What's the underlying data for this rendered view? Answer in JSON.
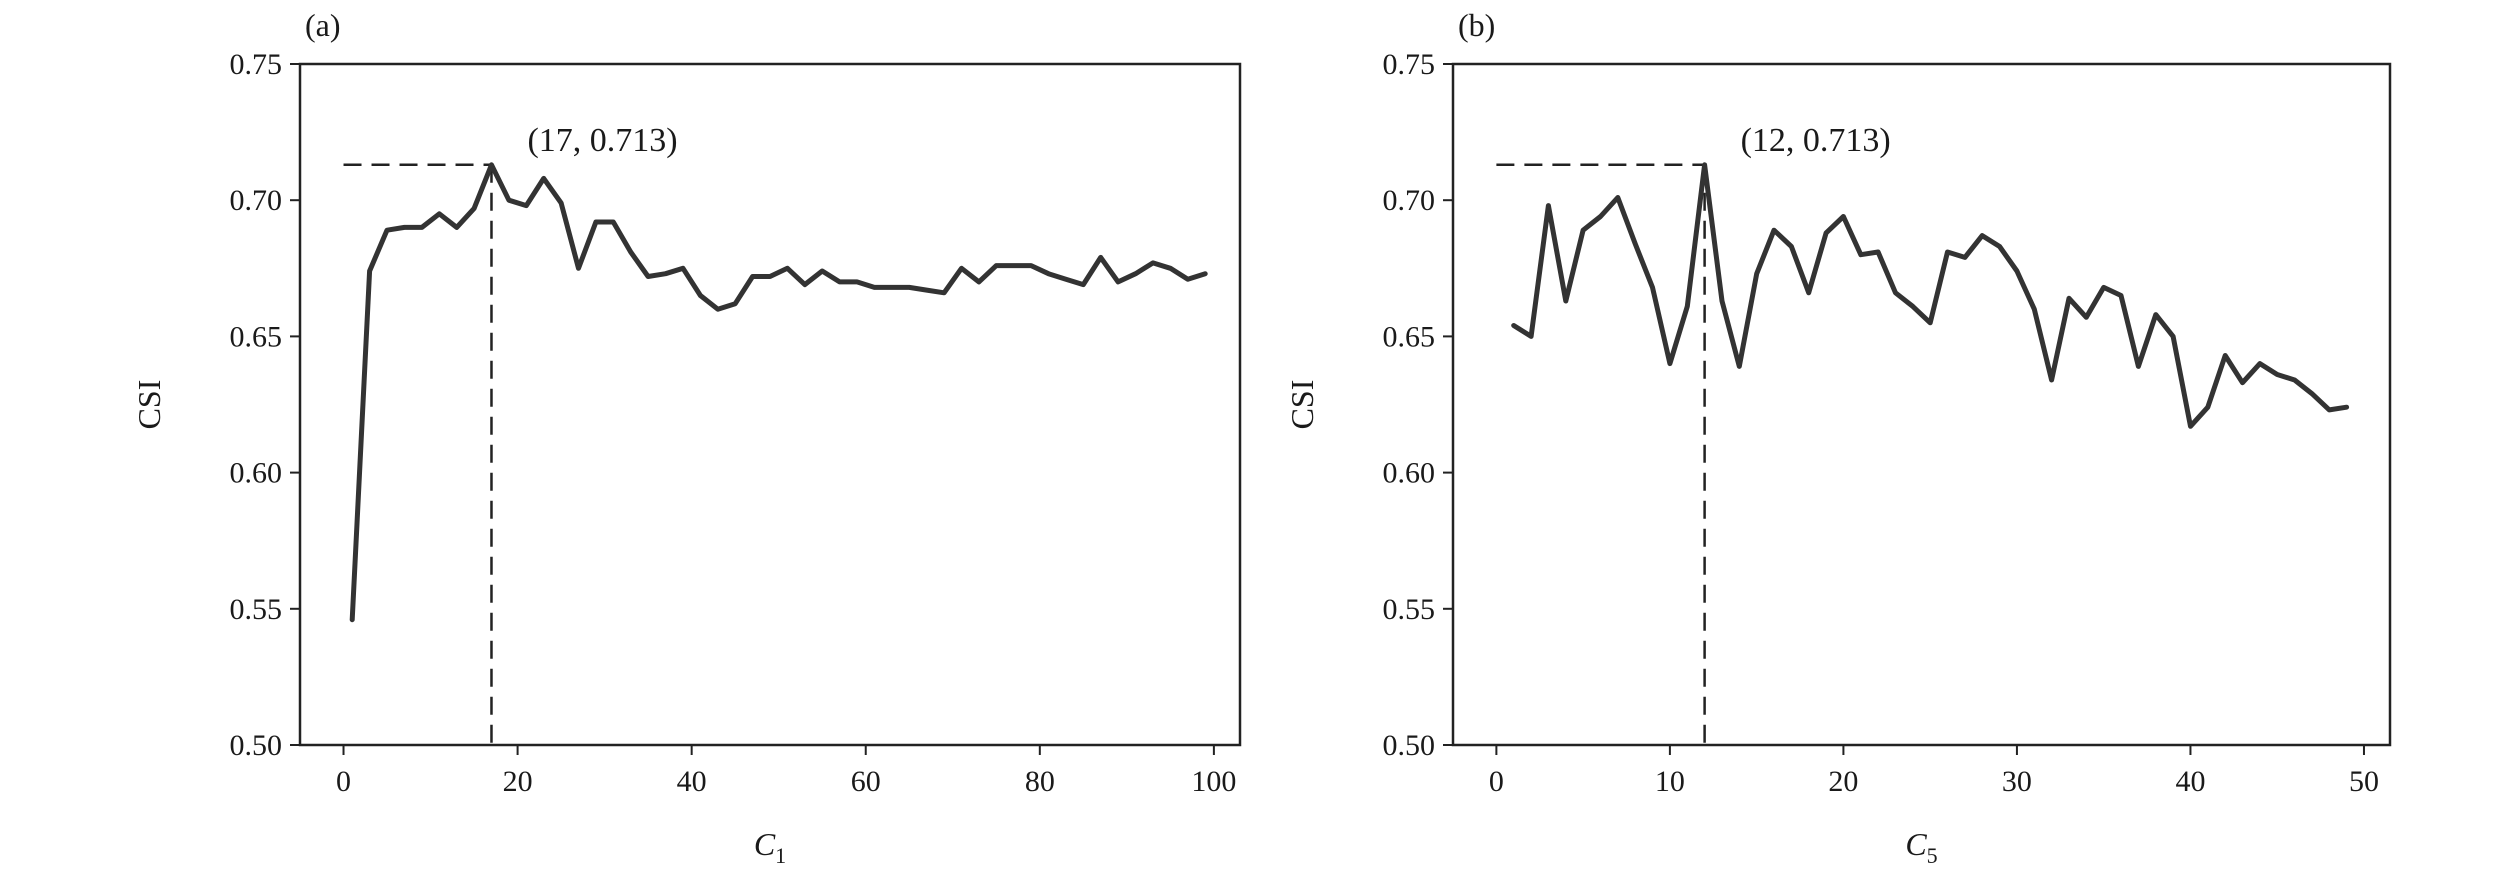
{
  "chart_data": [
    {
      "panel": "(a)",
      "type": "line",
      "ylabel": "CSI",
      "xlabel_main": "C",
      "xlabel_sub": "1",
      "xlim": [
        -5,
        103
      ],
      "ylim": [
        0.5,
        0.75
      ],
      "xticks": [
        0,
        20,
        40,
        60,
        80,
        100
      ],
      "yticks": [
        0.5,
        0.55,
        0.6,
        0.65,
        0.7,
        0.75
      ],
      "ytick_labels": [
        "0.50",
        "0.55",
        "0.60",
        "0.65",
        "0.70",
        "0.75"
      ],
      "grid": false,
      "legend": "none",
      "series": [
        {
          "x": [
            1,
            3,
            5,
            7,
            9,
            11,
            13,
            15,
            17,
            19,
            21,
            23,
            25,
            27,
            29,
            31,
            33,
            35,
            37,
            39,
            41,
            43,
            45,
            47,
            49,
            51,
            53,
            55,
            57,
            59,
            61,
            63,
            65,
            67,
            69,
            71,
            73,
            75,
            77,
            79,
            81,
            83,
            85,
            87,
            89,
            91,
            93,
            95,
            97,
            99
          ],
          "values": [
            0.546,
            0.674,
            0.689,
            0.69,
            0.69,
            0.695,
            0.69,
            0.697,
            0.713,
            0.7,
            0.698,
            0.708,
            0.699,
            0.675,
            0.692,
            0.692,
            0.681,
            0.672,
            0.673,
            0.675,
            0.665,
            0.66,
            0.662,
            0.672,
            0.672,
            0.675,
            0.669,
            0.674,
            0.67,
            0.67,
            0.668,
            0.668,
            0.668,
            0.667,
            0.666,
            0.675,
            0.67,
            0.676,
            0.676,
            0.676,
            0.673,
            0.671,
            0.669,
            0.679,
            0.67,
            0.673,
            0.677,
            0.675,
            0.671,
            0.673
          ]
        }
      ],
      "peak": {
        "x": 17,
        "y": 0.713,
        "label": "(17, 0.713)"
      }
    },
    {
      "panel": "(b)",
      "type": "line",
      "ylabel": "CSI",
      "xlabel_main": "C",
      "xlabel_sub": "5",
      "xlim": [
        -2.5,
        51.5
      ],
      "ylim": [
        0.5,
        0.75
      ],
      "xticks": [
        0,
        10,
        20,
        30,
        40,
        50
      ],
      "yticks": [
        0.5,
        0.55,
        0.6,
        0.65,
        0.7,
        0.75
      ],
      "ytick_labels": [
        "0.50",
        "0.55",
        "0.60",
        "0.65",
        "0.70",
        "0.75"
      ],
      "grid": false,
      "legend": "none",
      "series": [
        {
          "x": [
            1,
            2,
            3,
            4,
            5,
            6,
            7,
            8,
            9,
            10,
            11,
            12,
            13,
            14,
            15,
            16,
            17,
            18,
            19,
            20,
            21,
            22,
            23,
            24,
            25,
            26,
            27,
            28,
            29,
            30,
            31,
            32,
            33,
            34,
            35,
            36,
            37,
            38,
            39,
            40,
            41,
            42,
            43,
            44,
            45,
            46,
            47,
            48,
            49
          ],
          "values": [
            0.654,
            0.65,
            0.698,
            0.663,
            0.689,
            0.694,
            0.701,
            0.684,
            0.668,
            0.64,
            0.661,
            0.713,
            0.663,
            0.639,
            0.673,
            0.689,
            0.683,
            0.666,
            0.688,
            0.694,
            0.68,
            0.681,
            0.666,
            0.661,
            0.655,
            0.681,
            0.679,
            0.687,
            0.683,
            0.674,
            0.66,
            0.634,
            0.664,
            0.657,
            0.668,
            0.665,
            0.639,
            0.658,
            0.65,
            0.617,
            0.624,
            0.643,
            0.633,
            0.64,
            0.636,
            0.634,
            0.629,
            0.623,
            0.624
          ]
        }
      ],
      "peak": {
        "x": 12,
        "y": 0.713,
        "label": "(12, 0.713)"
      }
    }
  ]
}
